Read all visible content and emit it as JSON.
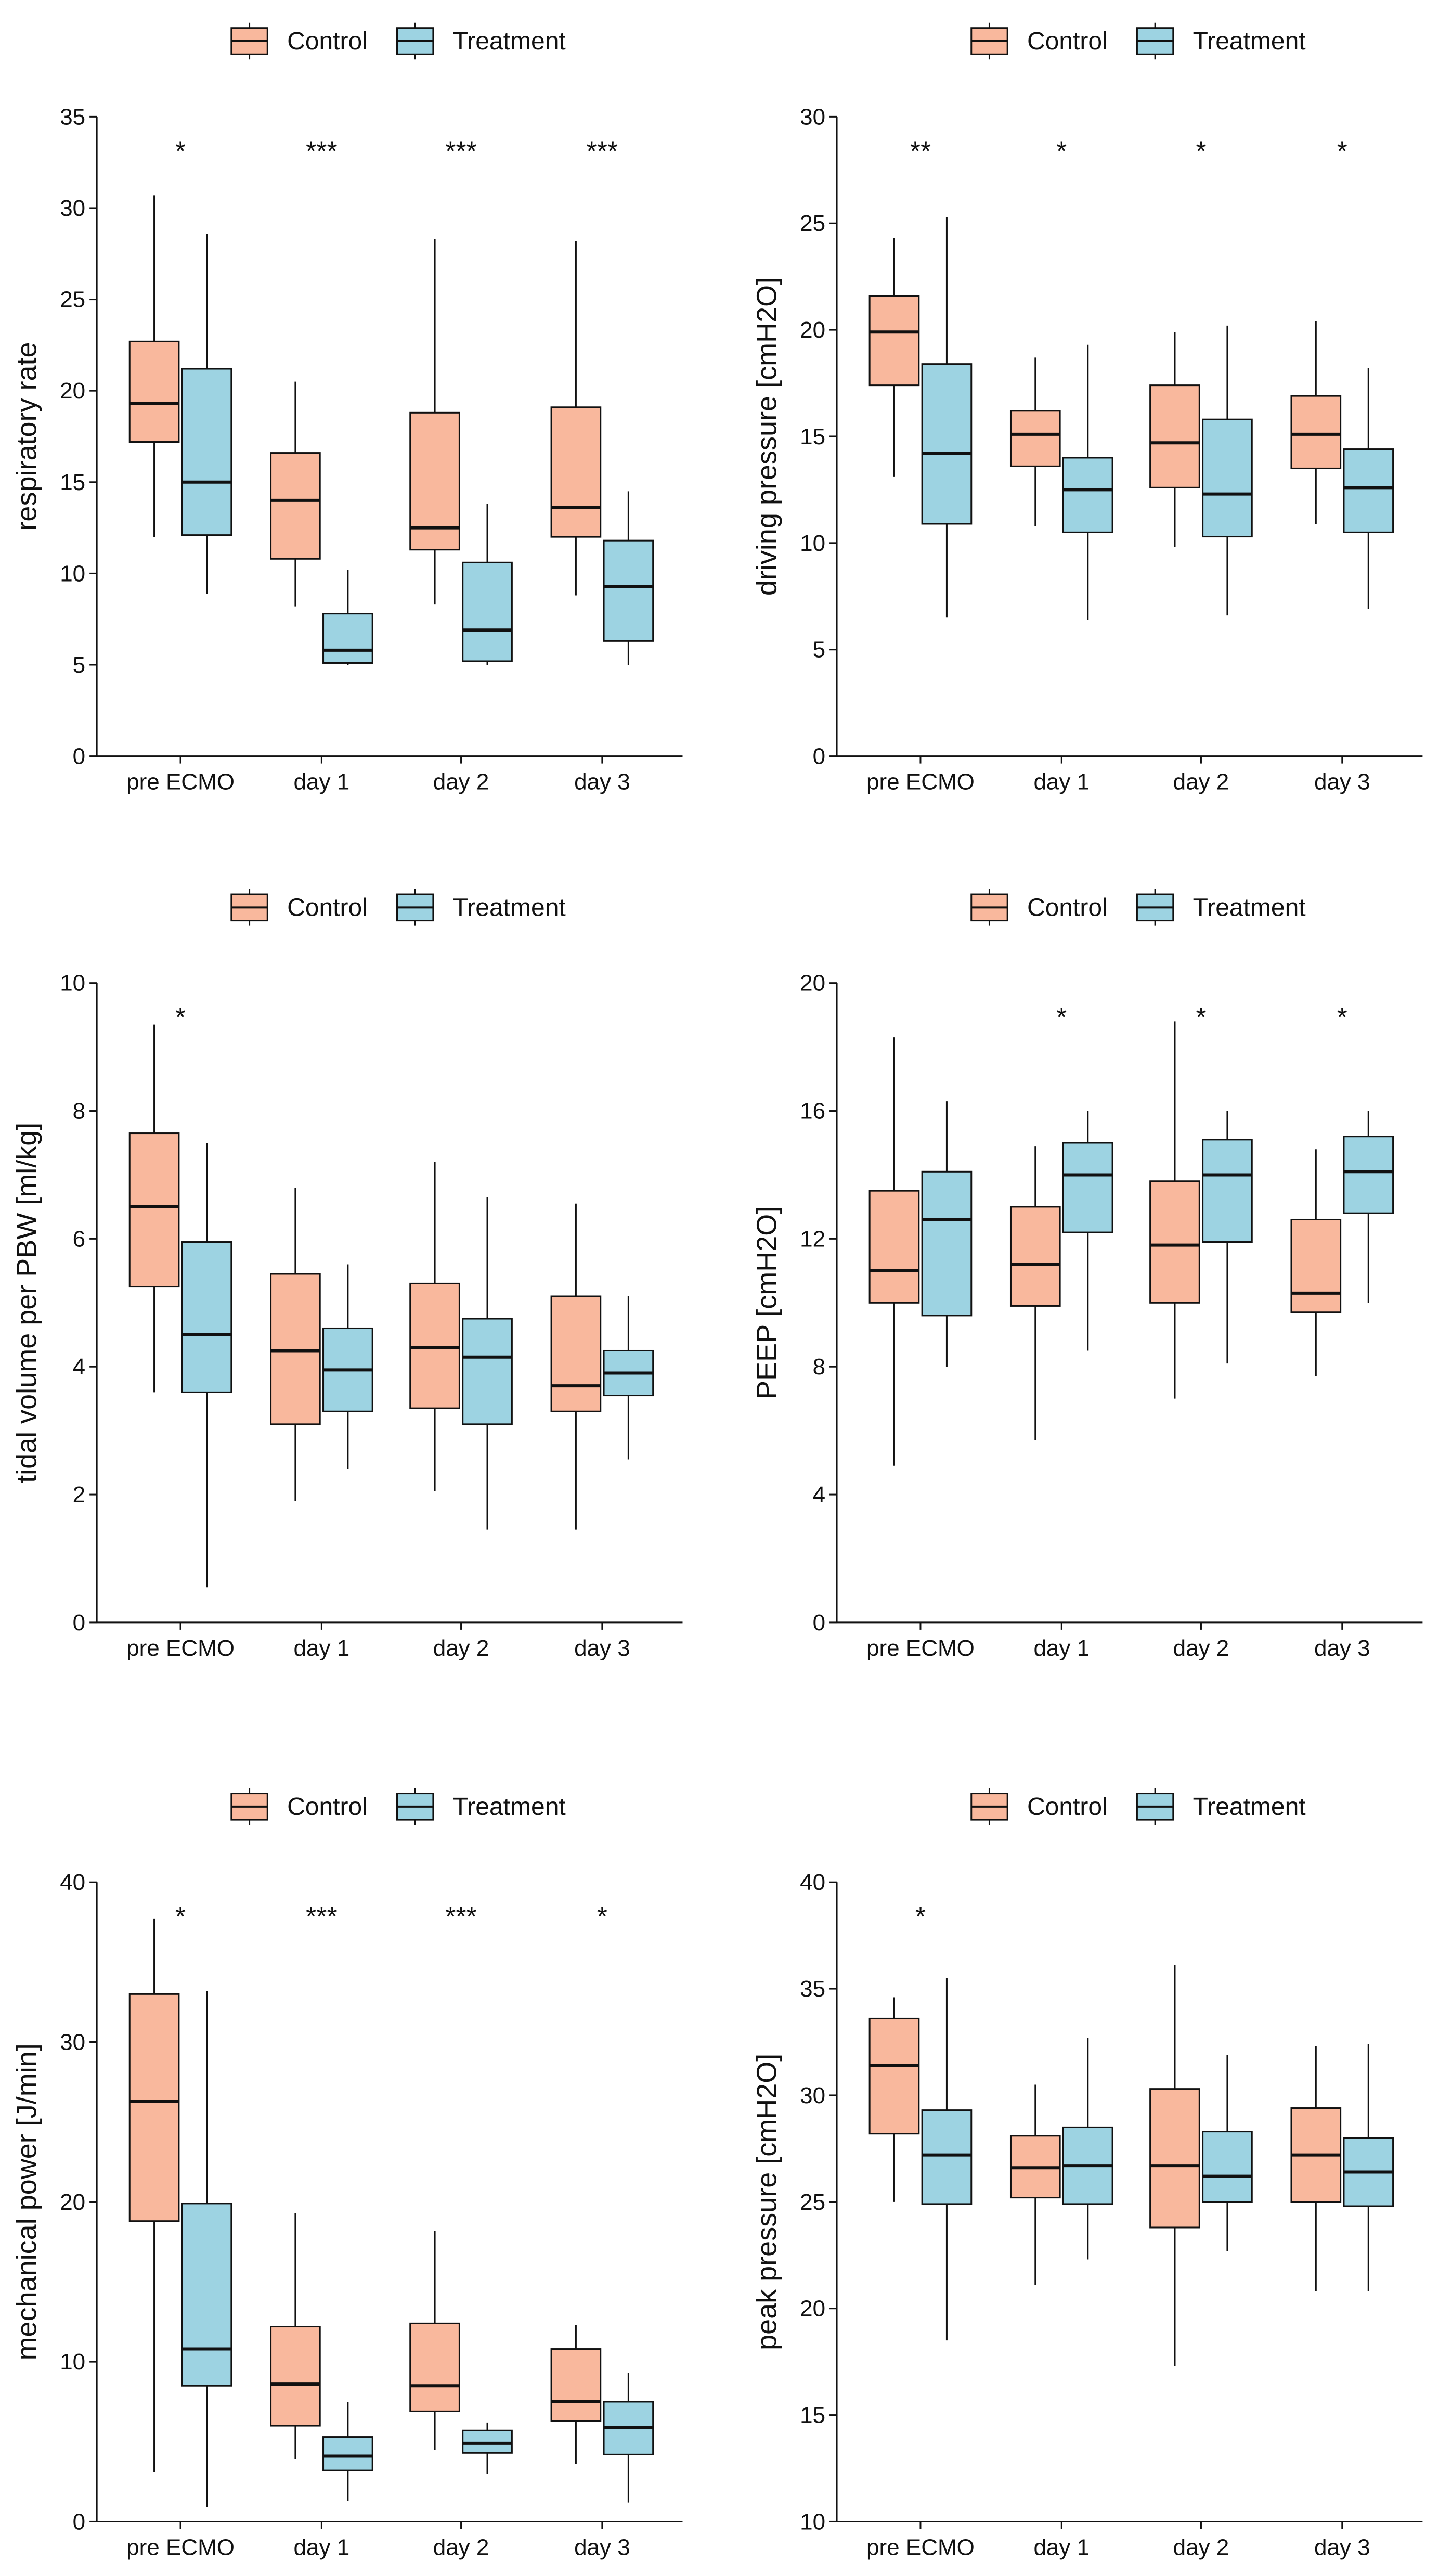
{
  "colors": {
    "control": "#F9B89D",
    "treatment": "#9DD3E2",
    "stroke": "#111111"
  },
  "legend": {
    "control": "Control",
    "treatment": "Treatment"
  },
  "chart_data": [
    {
      "type": "box",
      "ylabel": "respiratory rate",
      "ylim": [
        0,
        35
      ],
      "yticks": [
        0,
        5,
        10,
        15,
        20,
        25,
        30,
        35
      ],
      "categories": [
        "pre ECMO",
        "day 1",
        "day 2",
        "day 3"
      ],
      "significance": [
        "*",
        "***",
        "***",
        "***"
      ],
      "series": [
        {
          "name": "Control",
          "boxes": [
            {
              "min": 12,
              "q1": 17.2,
              "median": 19.3,
              "q3": 22.7,
              "max": 30.7
            },
            {
              "min": 8.2,
              "q1": 10.8,
              "median": 14.0,
              "q3": 16.6,
              "max": 20.5
            },
            {
              "min": 8.3,
              "q1": 11.3,
              "median": 12.5,
              "q3": 18.8,
              "max": 28.3
            },
            {
              "min": 8.8,
              "q1": 12.0,
              "median": 13.6,
              "q3": 19.1,
              "max": 28.2
            }
          ]
        },
        {
          "name": "Treatment",
          "boxes": [
            {
              "min": 8.9,
              "q1": 12.1,
              "median": 15.0,
              "q3": 21.2,
              "max": 28.6
            },
            {
              "min": 5.0,
              "q1": 5.1,
              "median": 5.8,
              "q3": 7.8,
              "max": 10.2
            },
            {
              "min": 5.0,
              "q1": 5.2,
              "median": 6.9,
              "q3": 10.6,
              "max": 13.8
            },
            {
              "min": 5.0,
              "q1": 6.3,
              "median": 9.3,
              "q3": 11.8,
              "max": 14.5
            }
          ]
        }
      ]
    },
    {
      "type": "box",
      "ylabel": "driving pressure [cmH2O]",
      "ylim": [
        0,
        30
      ],
      "yticks": [
        0,
        5,
        10,
        15,
        20,
        25,
        30
      ],
      "categories": [
        "pre ECMO",
        "day 1",
        "day 2",
        "day 3"
      ],
      "significance": [
        "**",
        "*",
        "*",
        "*"
      ],
      "series": [
        {
          "name": "Control",
          "boxes": [
            {
              "min": 13.1,
              "q1": 17.4,
              "median": 19.9,
              "q3": 21.6,
              "max": 24.3
            },
            {
              "min": 10.8,
              "q1": 13.6,
              "median": 15.1,
              "q3": 16.2,
              "max": 18.7
            },
            {
              "min": 9.8,
              "q1": 12.6,
              "median": 14.7,
              "q3": 17.4,
              "max": 19.9
            },
            {
              "min": 10.9,
              "q1": 13.5,
              "median": 15.1,
              "q3": 16.9,
              "max": 20.4
            }
          ]
        },
        {
          "name": "Treatment",
          "boxes": [
            {
              "min": 6.5,
              "q1": 10.9,
              "median": 14.2,
              "q3": 18.4,
              "max": 25.3
            },
            {
              "min": 6.4,
              "q1": 10.5,
              "median": 12.5,
              "q3": 14.0,
              "max": 19.3
            },
            {
              "min": 6.6,
              "q1": 10.3,
              "median": 12.3,
              "q3": 15.8,
              "max": 20.2
            },
            {
              "min": 6.9,
              "q1": 10.5,
              "median": 12.6,
              "q3": 14.4,
              "max": 18.2
            }
          ]
        }
      ]
    },
    {
      "type": "box",
      "ylabel": "tidal volume per PBW [ml/kg]",
      "ylim": [
        0,
        10
      ],
      "yticks": [
        0,
        2,
        4,
        6,
        8,
        10
      ],
      "categories": [
        "pre ECMO",
        "day 1",
        "day 2",
        "day 3"
      ],
      "significance": [
        "*",
        "",
        "",
        ""
      ],
      "series": [
        {
          "name": "Control",
          "boxes": [
            {
              "min": 3.6,
              "q1": 5.25,
              "median": 6.5,
              "q3": 7.65,
              "max": 9.35
            },
            {
              "min": 1.9,
              "q1": 3.1,
              "median": 4.25,
              "q3": 5.45,
              "max": 6.8
            },
            {
              "min": 2.05,
              "q1": 3.35,
              "median": 4.3,
              "q3": 5.3,
              "max": 7.2
            },
            {
              "min": 1.45,
              "q1": 3.3,
              "median": 3.7,
              "q3": 5.1,
              "max": 6.55
            }
          ]
        },
        {
          "name": "Treatment",
          "boxes": [
            {
              "min": 0.55,
              "q1": 3.6,
              "median": 4.5,
              "q3": 5.95,
              "max": 7.5
            },
            {
              "min": 2.4,
              "q1": 3.3,
              "median": 3.95,
              "q3": 4.6,
              "max": 5.6
            },
            {
              "min": 1.45,
              "q1": 3.1,
              "median": 4.15,
              "q3": 4.75,
              "max": 6.65
            },
            {
              "min": 2.55,
              "q1": 3.55,
              "median": 3.9,
              "q3": 4.25,
              "max": 5.1
            }
          ]
        }
      ]
    },
    {
      "type": "box",
      "ylabel": "PEEP [cmH2O]",
      "ylim": [
        0,
        20
      ],
      "yticks": [
        0,
        4,
        8,
        12,
        16,
        20
      ],
      "categories": [
        "pre ECMO",
        "day 1",
        "day 2",
        "day 3"
      ],
      "significance": [
        "",
        "*",
        "*",
        "*"
      ],
      "series": [
        {
          "name": "Control",
          "boxes": [
            {
              "min": 4.9,
              "q1": 10.0,
              "median": 11.0,
              "q3": 13.5,
              "max": 18.3
            },
            {
              "min": 5.7,
              "q1": 9.9,
              "median": 11.2,
              "q3": 13.0,
              "max": 14.9
            },
            {
              "min": 7.0,
              "q1": 10.0,
              "median": 11.8,
              "q3": 13.8,
              "max": 18.8
            },
            {
              "min": 7.7,
              "q1": 9.7,
              "median": 10.3,
              "q3": 12.6,
              "max": 14.8
            }
          ]
        },
        {
          "name": "Treatment",
          "boxes": [
            {
              "min": 8.0,
              "q1": 9.6,
              "median": 12.6,
              "q3": 14.1,
              "max": 16.3
            },
            {
              "min": 8.5,
              "q1": 12.2,
              "median": 14.0,
              "q3": 15.0,
              "max": 16.0
            },
            {
              "min": 8.1,
              "q1": 11.9,
              "median": 14.0,
              "q3": 15.1,
              "max": 16.0
            },
            {
              "min": 10.0,
              "q1": 12.8,
              "median": 14.1,
              "q3": 15.2,
              "max": 16.0
            }
          ]
        }
      ]
    },
    {
      "type": "box",
      "ylabel": "mechanical power [J/min]",
      "ylim": [
        0,
        40
      ],
      "yticks": [
        0,
        10,
        20,
        30,
        40
      ],
      "categories": [
        "pre ECMO",
        "day 1",
        "day 2",
        "day 3"
      ],
      "significance": [
        "*",
        "***",
        "***",
        "*"
      ],
      "series": [
        {
          "name": "Control",
          "boxes": [
            {
              "min": 3.1,
              "q1": 18.8,
              "median": 26.3,
              "q3": 33.0,
              "max": 37.7
            },
            {
              "min": 3.9,
              "q1": 6.0,
              "median": 8.6,
              "q3": 12.2,
              "max": 19.3
            },
            {
              "min": 4.5,
              "q1": 6.9,
              "median": 8.5,
              "q3": 12.4,
              "max": 18.2
            },
            {
              "min": 3.6,
              "q1": 6.3,
              "median": 7.5,
              "q3": 10.8,
              "max": 12.3
            }
          ]
        },
        {
          "name": "Treatment",
          "boxes": [
            {
              "min": 0.9,
              "q1": 8.5,
              "median": 10.8,
              "q3": 19.9,
              "max": 33.2
            },
            {
              "min": 1.3,
              "q1": 3.2,
              "median": 4.1,
              "q3": 5.3,
              "max": 7.5
            },
            {
              "min": 3.0,
              "q1": 4.3,
              "median": 4.9,
              "q3": 5.7,
              "max": 6.2
            },
            {
              "min": 1.2,
              "q1": 4.2,
              "median": 5.9,
              "q3": 7.5,
              "max": 9.3
            }
          ]
        }
      ]
    },
    {
      "type": "box",
      "ylabel": "peak pressure [cmH2O]",
      "ylim": [
        10,
        40
      ],
      "yticks": [
        10,
        15,
        20,
        25,
        30,
        35,
        40
      ],
      "categories": [
        "pre ECMO",
        "day 1",
        "day 2",
        "day 3"
      ],
      "significance": [
        "*",
        "",
        "",
        ""
      ],
      "series": [
        {
          "name": "Control",
          "boxes": [
            {
              "min": 25.0,
              "q1": 28.2,
              "median": 31.4,
              "q3": 33.6,
              "max": 34.6
            },
            {
              "min": 21.1,
              "q1": 25.2,
              "median": 26.6,
              "q3": 28.1,
              "max": 30.5
            },
            {
              "min": 17.3,
              "q1": 23.8,
              "median": 26.7,
              "q3": 30.3,
              "max": 36.1
            },
            {
              "min": 20.8,
              "q1": 25.0,
              "median": 27.2,
              "q3": 29.4,
              "max": 32.3
            }
          ]
        },
        {
          "name": "Treatment",
          "boxes": [
            {
              "min": 18.5,
              "q1": 24.9,
              "median": 27.2,
              "q3": 29.3,
              "max": 35.5
            },
            {
              "min": 22.3,
              "q1": 24.9,
              "median": 26.7,
              "q3": 28.5,
              "max": 32.7
            },
            {
              "min": 22.7,
              "q1": 25.0,
              "median": 26.2,
              "q3": 28.3,
              "max": 31.9
            },
            {
              "min": 20.8,
              "q1": 24.8,
              "median": 26.4,
              "q3": 28.0,
              "max": 32.4
            }
          ]
        }
      ]
    }
  ]
}
